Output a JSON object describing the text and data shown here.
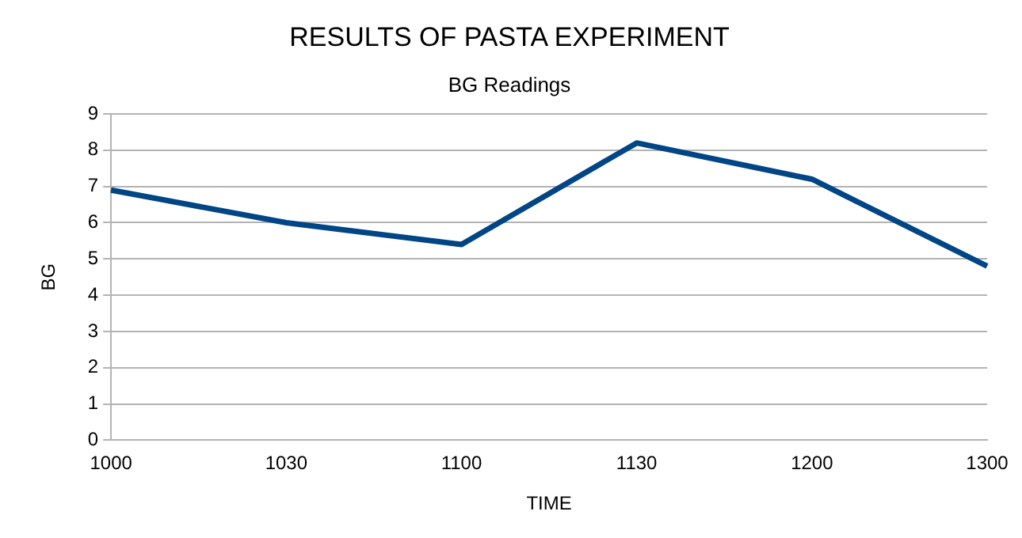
{
  "chart_data": {
    "type": "line",
    "title": "RESULTS OF PASTA EXPERIMENT",
    "subtitle": "BG Readings",
    "xlabel": "TIME",
    "ylabel": "BG",
    "categories": [
      "1000",
      "1030",
      "1100",
      "1130",
      "1200",
      "1300"
    ],
    "series": [
      {
        "color": "#004586",
        "values": [
          6.9,
          6.0,
          5.4,
          8.2,
          7.2,
          4.8
        ]
      }
    ],
    "ylim": [
      0,
      9
    ],
    "yticks": [
      0,
      1,
      2,
      3,
      4,
      5,
      6,
      7,
      8,
      9
    ],
    "grid": "y",
    "legend": false,
    "marker": "none",
    "line_style": "solid"
  }
}
